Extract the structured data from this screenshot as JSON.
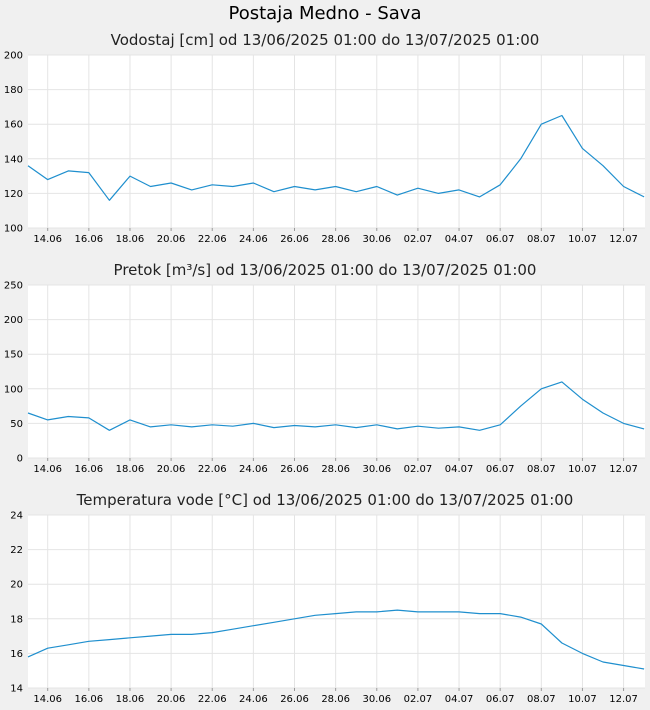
{
  "page_title": "Postaja Medno - Sava",
  "chart_data": [
    {
      "type": "line",
      "title": "Vodostaj [cm] od 13/06/2025 01:00 do 13/07/2025 01:00",
      "xlabel": "",
      "ylabel": "",
      "ylim": [
        100,
        200
      ],
      "y_ticks": [
        "100",
        "120",
        "140",
        "160",
        "180",
        "200"
      ],
      "x_range": [
        "2025-06-13 01:00",
        "2025-07-13 01:00"
      ],
      "x_ticks": [
        "14.06",
        "16.06",
        "18.06",
        "20.06",
        "22.06",
        "24.06",
        "26.06",
        "28.06",
        "30.06",
        "02.07",
        "04.07",
        "06.07",
        "08.07",
        "10.07",
        "12.07"
      ],
      "grid": true,
      "line_color": "#1f8fce",
      "series": [
        {
          "x": [
            "2025-06-13",
            "2025-06-14",
            "2025-06-15",
            "2025-06-16",
            "2025-06-17",
            "2025-06-18",
            "2025-06-19",
            "2025-06-20",
            "2025-06-21",
            "2025-06-22",
            "2025-06-23",
            "2025-06-24",
            "2025-06-25",
            "2025-06-26",
            "2025-06-27",
            "2025-06-28",
            "2025-06-29",
            "2025-06-30",
            "2025-07-01",
            "2025-07-02",
            "2025-07-03",
            "2025-07-04",
            "2025-07-05",
            "2025-07-06",
            "2025-07-07",
            "2025-07-08",
            "2025-07-09",
            "2025-07-10",
            "2025-07-11",
            "2025-07-12",
            "2025-07-13"
          ],
          "values": [
            136,
            128,
            133,
            132,
            116,
            130,
            124,
            126,
            122,
            125,
            124,
            126,
            121,
            124,
            122,
            124,
            121,
            124,
            119,
            123,
            120,
            122,
            118,
            125,
            140,
            160,
            165,
            146,
            136,
            124,
            118
          ]
        }
      ]
    },
    {
      "type": "line",
      "title": "Pretok [m³/s] od 13/06/2025 01:00 do 13/07/2025 01:00",
      "xlabel": "",
      "ylabel": "",
      "ylim": [
        0,
        250
      ],
      "y_ticks": [
        "0",
        "50",
        "100",
        "150",
        "200",
        "250"
      ],
      "x_range": [
        "2025-06-13 01:00",
        "2025-07-13 01:00"
      ],
      "x_ticks": [
        "14.06",
        "16.06",
        "18.06",
        "20.06",
        "22.06",
        "24.06",
        "26.06",
        "28.06",
        "30.06",
        "02.07",
        "04.07",
        "06.07",
        "08.07",
        "10.07",
        "12.07"
      ],
      "grid": true,
      "line_color": "#1f8fce",
      "series": [
        {
          "x": [
            "2025-06-13",
            "2025-06-14",
            "2025-06-15",
            "2025-06-16",
            "2025-06-17",
            "2025-06-18",
            "2025-06-19",
            "2025-06-20",
            "2025-06-21",
            "2025-06-22",
            "2025-06-23",
            "2025-06-24",
            "2025-06-25",
            "2025-06-26",
            "2025-06-27",
            "2025-06-28",
            "2025-06-29",
            "2025-06-30",
            "2025-07-01",
            "2025-07-02",
            "2025-07-03",
            "2025-07-04",
            "2025-07-05",
            "2025-07-06",
            "2025-07-07",
            "2025-07-08",
            "2025-07-09",
            "2025-07-10",
            "2025-07-11",
            "2025-07-12",
            "2025-07-13"
          ],
          "values": [
            65,
            55,
            60,
            58,
            40,
            55,
            45,
            48,
            45,
            48,
            46,
            50,
            44,
            47,
            45,
            48,
            44,
            48,
            42,
            46,
            43,
            45,
            40,
            48,
            75,
            100,
            110,
            85,
            65,
            50,
            42
          ]
        }
      ]
    },
    {
      "type": "line",
      "title": "Temperatura vode [°C] od 13/06/2025 01:00 do 13/07/2025 01:00",
      "xlabel": "",
      "ylabel": "",
      "ylim": [
        14,
        24
      ],
      "y_ticks": [
        "14",
        "16",
        "18",
        "20",
        "22",
        "24"
      ],
      "x_range": [
        "2025-06-13 01:00",
        "2025-07-13 01:00"
      ],
      "x_ticks": [
        "14.06",
        "16.06",
        "18.06",
        "20.06",
        "22.06",
        "24.06",
        "26.06",
        "28.06",
        "30.06",
        "02.07",
        "04.07",
        "06.07",
        "08.07",
        "10.07",
        "12.07"
      ],
      "grid": true,
      "line_color": "#1f8fce",
      "series": [
        {
          "x": [
            "2025-06-13",
            "2025-06-14",
            "2025-06-15",
            "2025-06-16",
            "2025-06-17",
            "2025-06-18",
            "2025-06-19",
            "2025-06-20",
            "2025-06-21",
            "2025-06-22",
            "2025-06-23",
            "2025-06-24",
            "2025-06-25",
            "2025-06-26",
            "2025-06-27",
            "2025-06-28",
            "2025-06-29",
            "2025-06-30",
            "2025-07-01",
            "2025-07-02",
            "2025-07-03",
            "2025-07-04",
            "2025-07-05",
            "2025-07-06",
            "2025-07-07",
            "2025-07-08",
            "2025-07-09",
            "2025-07-10",
            "2025-07-11",
            "2025-07-12",
            "2025-07-13"
          ],
          "values": [
            15.8,
            16.3,
            16.5,
            16.7,
            16.8,
            16.9,
            17.0,
            17.1,
            17.1,
            17.2,
            17.4,
            17.6,
            17.8,
            18.0,
            18.2,
            18.3,
            18.4,
            18.4,
            18.5,
            18.4,
            18.4,
            18.4,
            18.3,
            18.3,
            18.1,
            17.7,
            16.6,
            16.0,
            15.5,
            15.3,
            15.1
          ]
        }
      ]
    }
  ]
}
